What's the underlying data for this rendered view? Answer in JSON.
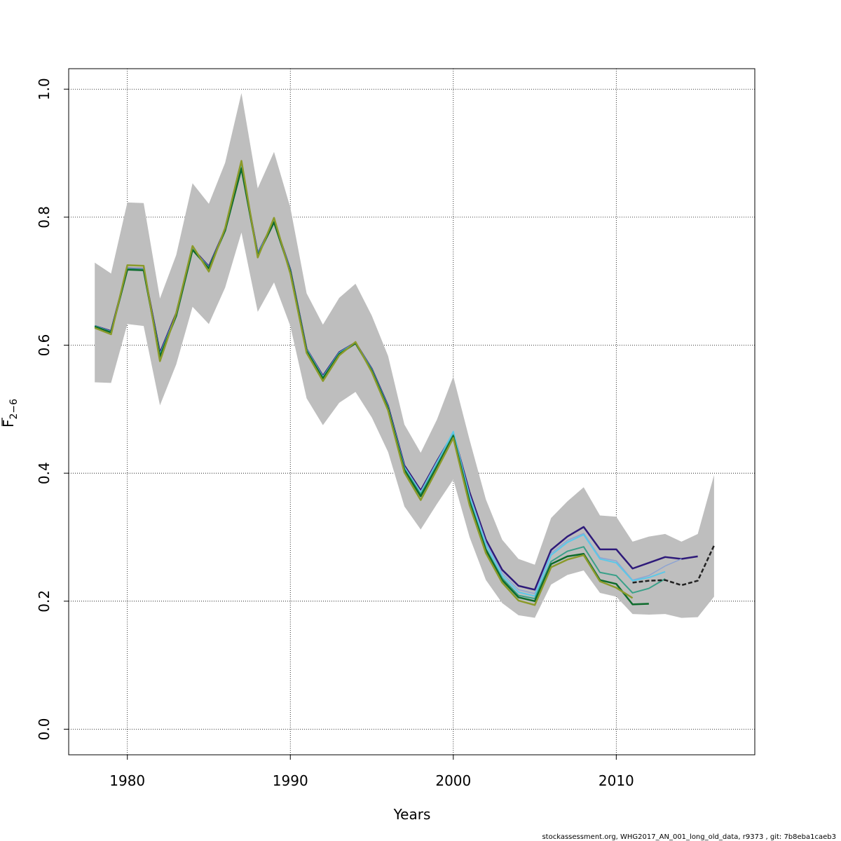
{
  "chart_data": {
    "type": "line",
    "title": "",
    "xlabel": "Years",
    "ylabel": "F",
    "ylabel_subscript": "2−6",
    "xlim": [
      1976.4,
      2018.5
    ],
    "ylim": [
      -0.04,
      1.032
    ],
    "xticks": [
      1980,
      1990,
      2000,
      2010
    ],
    "xtick_labels": [
      "1980",
      "1990",
      "2000",
      "2010"
    ],
    "yticks": [
      0.0,
      0.2,
      0.4,
      0.6,
      0.8,
      1.0
    ],
    "ytick_labels": [
      "0.0",
      "0.2",
      "0.4",
      "0.6",
      "0.8",
      "1.0"
    ],
    "grid": true,
    "legend": "none",
    "band": {
      "color": "#bebebe",
      "x": [
        1978,
        1979,
        1980,
        1981,
        1982,
        1983,
        1984,
        1985,
        1986,
        1987,
        1988,
        1989,
        1990,
        1991,
        1992,
        1993,
        1994,
        1995,
        1996,
        1997,
        1998,
        1999,
        2000,
        2001,
        2002,
        2003,
        2004,
        2005,
        2006,
        2007,
        2008,
        2009,
        2010,
        2011,
        2012,
        2013,
        2014,
        2015,
        2016
      ],
      "lower": [
        0.542,
        0.541,
        0.633,
        0.63,
        0.506,
        0.57,
        0.66,
        0.633,
        0.69,
        0.776,
        0.652,
        0.698,
        0.63,
        0.517,
        0.475,
        0.51,
        0.527,
        0.487,
        0.433,
        0.348,
        0.312,
        0.352,
        0.39,
        0.3,
        0.233,
        0.197,
        0.178,
        0.174,
        0.226,
        0.241,
        0.248,
        0.213,
        0.207,
        0.18,
        0.179,
        0.18,
        0.174,
        0.175,
        0.207
      ],
      "upper": [
        0.729,
        0.712,
        0.823,
        0.822,
        0.673,
        0.741,
        0.853,
        0.821,
        0.885,
        0.994,
        0.845,
        0.902,
        0.815,
        0.681,
        0.632,
        0.674,
        0.696,
        0.646,
        0.583,
        0.476,
        0.432,
        0.484,
        0.551,
        0.452,
        0.359,
        0.296,
        0.266,
        0.257,
        0.33,
        0.356,
        0.378,
        0.334,
        0.332,
        0.293,
        0.301,
        0.305,
        0.293,
        0.305,
        0.397
      ]
    },
    "series": [
      {
        "color": "#2e1a7a",
        "width": 2.5,
        "dash": "",
        "x": [
          1978,
          1979,
          1980,
          1981,
          1982,
          1983,
          1984,
          1985,
          1986,
          1987,
          1988,
          1989,
          1990,
          1991,
          1992,
          1993,
          1994,
          1995,
          1996,
          1997,
          1998,
          1999,
          2000,
          2001,
          2002,
          2003,
          2004,
          2005,
          2006,
          2007,
          2008,
          2009,
          2010,
          2011,
          2012,
          2013,
          2014,
          2015
        ],
        "values": [
          0.63,
          0.622,
          0.72,
          0.719,
          0.588,
          0.65,
          0.751,
          0.723,
          0.781,
          0.879,
          0.743,
          0.794,
          0.718,
          0.594,
          0.552,
          0.589,
          0.604,
          0.563,
          0.505,
          0.412,
          0.373,
          0.419,
          0.462,
          0.37,
          0.296,
          0.249,
          0.224,
          0.218,
          0.28,
          0.301,
          0.316,
          0.281,
          0.281,
          0.251,
          0.26,
          0.269,
          0.266,
          0.27
        ]
      },
      {
        "color": "#8ea4d2",
        "width": 1.5,
        "dash": "",
        "x": [
          1978,
          1979,
          1980,
          1981,
          1982,
          1983,
          1984,
          1985,
          1986,
          1987,
          1988,
          1989,
          1990,
          1991,
          1992,
          1993,
          1994,
          1995,
          1996,
          1997,
          1998,
          1999,
          2000,
          2001,
          2002,
          2003,
          2004,
          2005,
          2006,
          2007,
          2008,
          2009,
          2010,
          2011,
          2012,
          2013,
          2014
        ],
        "values": [
          0.63,
          0.621,
          0.72,
          0.719,
          0.586,
          0.649,
          0.751,
          0.722,
          0.781,
          0.879,
          0.743,
          0.794,
          0.717,
          0.594,
          0.551,
          0.588,
          0.604,
          0.562,
          0.504,
          0.41,
          0.371,
          0.418,
          0.463,
          0.366,
          0.292,
          0.244,
          0.218,
          0.212,
          0.275,
          0.295,
          0.306,
          0.268,
          0.263,
          0.233,
          0.24,
          0.255,
          0.266
        ]
      },
      {
        "color": "#5bc8e8",
        "width": 2.0,
        "dash": "",
        "x": [
          1978,
          1979,
          1980,
          1981,
          1982,
          1983,
          1984,
          1985,
          1986,
          1987,
          1988,
          1989,
          1990,
          1991,
          1992,
          1993,
          1994,
          1995,
          1996,
          1997,
          1998,
          1999,
          2000,
          2001,
          2002,
          2003,
          2004,
          2005,
          2006,
          2007,
          2008,
          2009,
          2010,
          2011,
          2012,
          2013
        ],
        "values": [
          0.63,
          0.621,
          0.719,
          0.718,
          0.585,
          0.648,
          0.75,
          0.721,
          0.78,
          0.879,
          0.742,
          0.794,
          0.717,
          0.593,
          0.55,
          0.588,
          0.604,
          0.562,
          0.503,
          0.409,
          0.369,
          0.416,
          0.465,
          0.363,
          0.288,
          0.24,
          0.214,
          0.208,
          0.272,
          0.292,
          0.304,
          0.266,
          0.26,
          0.232,
          0.237,
          0.246
        ]
      },
      {
        "color": "#3aa089",
        "width": 2.0,
        "dash": "",
        "x": [
          1978,
          1979,
          1980,
          1981,
          1982,
          1983,
          1984,
          1985,
          1986,
          1987,
          1988,
          1989,
          1990,
          1991,
          1992,
          1993,
          1994,
          1995,
          1996,
          1997,
          1998,
          1999,
          2000,
          2001,
          2002,
          2003,
          2004,
          2005,
          2006,
          2007,
          2008,
          2009,
          2010,
          2011,
          2012,
          2013
        ],
        "values": [
          0.63,
          0.62,
          0.719,
          0.718,
          0.584,
          0.647,
          0.749,
          0.72,
          0.78,
          0.878,
          0.741,
          0.793,
          0.716,
          0.592,
          0.549,
          0.587,
          0.603,
          0.561,
          0.502,
          0.407,
          0.367,
          0.413,
          0.46,
          0.358,
          0.282,
          0.236,
          0.209,
          0.204,
          0.262,
          0.278,
          0.285,
          0.245,
          0.24,
          0.213,
          0.22,
          0.235
        ]
      },
      {
        "color": "#0d6b2c",
        "width": 2.5,
        "dash": "",
        "x": [
          1978,
          1979,
          1980,
          1981,
          1982,
          1983,
          1984,
          1985,
          1986,
          1987,
          1988,
          1989,
          1990,
          1991,
          1992,
          1993,
          1994,
          1995,
          1996,
          1997,
          1998,
          1999,
          2000,
          2001,
          2002,
          2003,
          2004,
          2005,
          2006,
          2007,
          2008,
          2009,
          2010,
          2011,
          2012
        ],
        "values": [
          0.629,
          0.62,
          0.718,
          0.717,
          0.582,
          0.646,
          0.749,
          0.72,
          0.779,
          0.876,
          0.74,
          0.792,
          0.715,
          0.591,
          0.548,
          0.586,
          0.603,
          0.56,
          0.501,
          0.405,
          0.364,
          0.41,
          0.458,
          0.355,
          0.28,
          0.233,
          0.206,
          0.2,
          0.258,
          0.27,
          0.274,
          0.233,
          0.227,
          0.195,
          0.196
        ]
      },
      {
        "color": "#8b9a2a",
        "width": 2.5,
        "dash": "",
        "x": [
          1978,
          1979,
          1980,
          1981,
          1982,
          1983,
          1984,
          1985,
          1986,
          1987,
          1988,
          1989,
          1990,
          1991,
          1992,
          1993,
          1994,
          1995,
          1996,
          1997,
          1998,
          1999,
          2000,
          2001,
          2002,
          2003,
          2004,
          2005,
          2006,
          2007,
          2008,
          2009,
          2010,
          2011
        ],
        "values": [
          0.627,
          0.617,
          0.725,
          0.724,
          0.575,
          0.65,
          0.755,
          0.715,
          0.783,
          0.888,
          0.737,
          0.799,
          0.712,
          0.588,
          0.544,
          0.584,
          0.605,
          0.558,
          0.498,
          0.401,
          0.358,
          0.406,
          0.455,
          0.35,
          0.275,
          0.229,
          0.201,
          0.194,
          0.253,
          0.265,
          0.272,
          0.231,
          0.221,
          0.205
        ]
      },
      {
        "color": "#222222",
        "width": 2.5,
        "dash": "6,3",
        "x": [
          2011,
          2012,
          2013,
          2014,
          2015,
          2016
        ],
        "values": [
          0.229,
          0.232,
          0.233,
          0.225,
          0.232,
          0.287
        ]
      }
    ]
  },
  "footer": "stockassessment.org, WHG2017_AN_001_long_old_data, r9373 , git: 7b8eba1caeb3"
}
